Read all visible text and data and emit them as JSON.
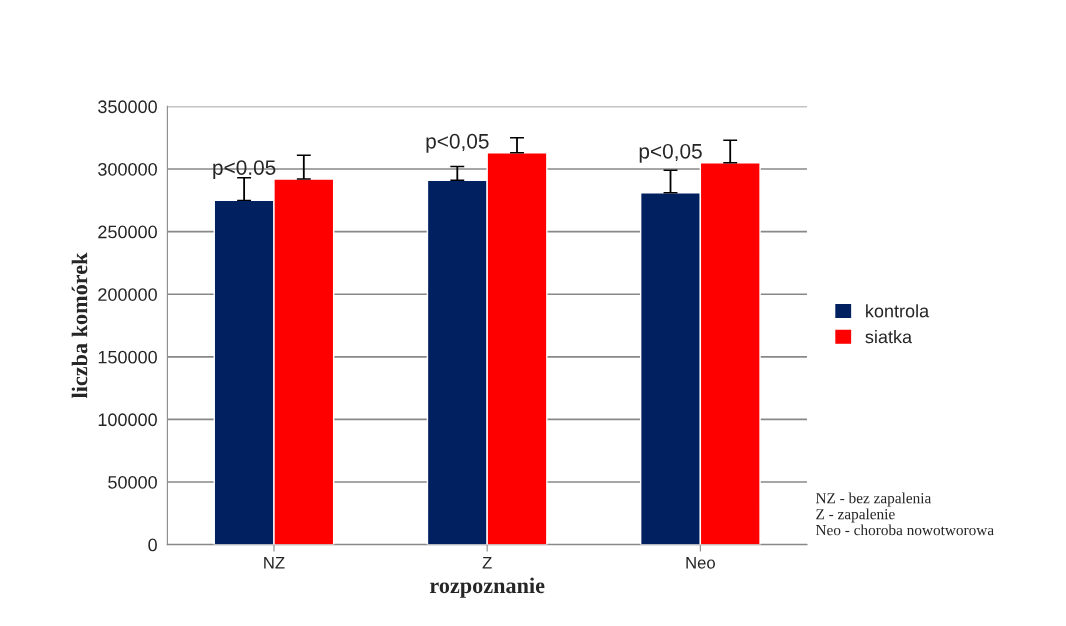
{
  "chart_data": {
    "type": "bar",
    "xlabel": "rozpoznanie",
    "ylabel": "liczba komórek",
    "categories": [
      "NZ",
      "Z",
      "Neo"
    ],
    "series": [
      {
        "name": "kontrola",
        "color": "#002060",
        "values": [
          275000,
          291000,
          281000
        ],
        "errors": [
          [
            275000,
            293000
          ],
          [
            291000,
            302000
          ],
          [
            281000,
            299000
          ]
        ]
      },
      {
        "name": "siatka",
        "color": "#ff0000",
        "values": [
          292000,
          313000,
          305000
        ],
        "errors": [
          [
            292000,
            311000
          ],
          [
            313000,
            325000
          ],
          [
            305000,
            323000
          ]
        ]
      }
    ],
    "ylim": [
      0,
      350000
    ],
    "yticks": [
      0,
      50000,
      100000,
      150000,
      200000,
      250000,
      300000,
      350000
    ],
    "grid": "y",
    "legend": "right",
    "annotations": [
      "p<0.05",
      "p<0,05",
      "p<0,05",
      "NZ - bez zapalenia\nZ - zapalenie\nNeo - choroba nowotworowa"
    ]
  }
}
